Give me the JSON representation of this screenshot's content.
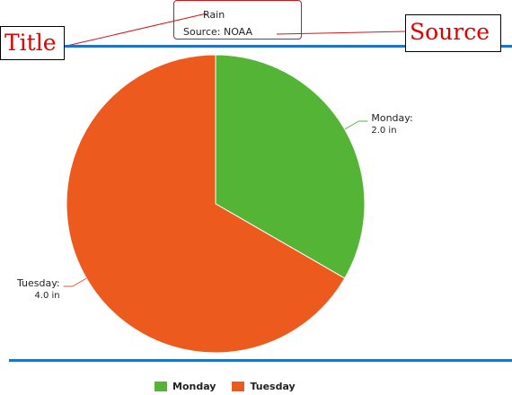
{
  "callout": {
    "chart_title": "Rain",
    "chart_source": "Source: NOAA"
  },
  "annotations": {
    "title_label": "Title",
    "source_label": "Source"
  },
  "colors": {
    "monday": "#54b435",
    "tuesday": "#ed5a1e",
    "rule": "#1f73c1",
    "annotation": "#d01616"
  },
  "chart_data": {
    "type": "pie",
    "title": "Rain",
    "subtitle": "Source: NOAA",
    "unit": "in",
    "slices": [
      {
        "name": "Monday",
        "value": 2.0,
        "label_name": "Monday:",
        "label_value": "2.0 in",
        "color": "#54b435"
      },
      {
        "name": "Tuesday",
        "value": 4.0,
        "label_name": "Tuesday:",
        "label_value": "4.0 in",
        "color": "#ed5a1e"
      }
    ],
    "legend": [
      "Monday",
      "Tuesday"
    ],
    "legend_position": "bottom"
  }
}
